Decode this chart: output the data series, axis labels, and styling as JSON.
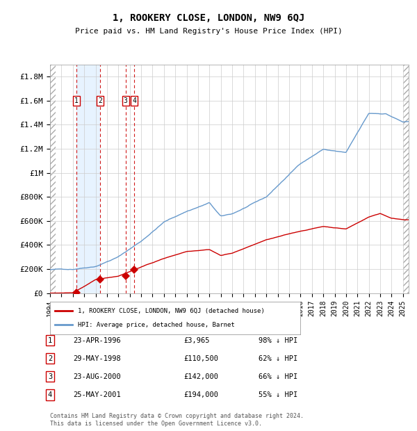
{
  "title": "1, ROOKERY CLOSE, LONDON, NW9 6QJ",
  "subtitle": "Price paid vs. HM Land Registry's House Price Index (HPI)",
  "xlabel": "",
  "ylabel": "",
  "ylim": [
    0,
    1900000
  ],
  "xlim_start": 1994.0,
  "xlim_end": 2025.5,
  "hpi_color": "#6699cc",
  "price_color": "#cc0000",
  "grid_color": "#cccccc",
  "bg_hatch_color": "#dddddd",
  "sale_marker_color": "#cc0000",
  "sale_vline_color": "#cc0000",
  "ownership_band_color": "#ddeeff",
  "transactions": [
    {
      "num": 1,
      "date_label": "23-APR-1996",
      "year": 1996.31,
      "price": 3965,
      "pct": "98%",
      "direction": "↓"
    },
    {
      "num": 2,
      "date_label": "29-MAY-1998",
      "year": 1998.41,
      "price": 110500,
      "pct": "62%",
      "direction": "↓"
    },
    {
      "num": 3,
      "date_label": "23-AUG-2000",
      "year": 2000.64,
      "price": 142000,
      "pct": "66%",
      "direction": "↓"
    },
    {
      "num": 4,
      "date_label": "25-MAY-2001",
      "year": 2001.4,
      "price": 194000,
      "pct": "55%",
      "direction": "↓"
    }
  ],
  "legend_house_label": "1, ROOKERY CLOSE, LONDON, NW9 6QJ (detached house)",
  "legend_hpi_label": "HPI: Average price, detached house, Barnet",
  "footer": "Contains HM Land Registry data © Crown copyright and database right 2024.\nThis data is licensed under the Open Government Licence v3.0.",
  "ytick_labels": [
    "£0",
    "£200K",
    "£400K",
    "£600K",
    "£800K",
    "£1M",
    "£1.2M",
    "£1.4M",
    "£1.6M",
    "£1.8M"
  ],
  "ytick_values": [
    0,
    200000,
    400000,
    600000,
    800000,
    1000000,
    1200000,
    1400000,
    1600000,
    1800000
  ]
}
